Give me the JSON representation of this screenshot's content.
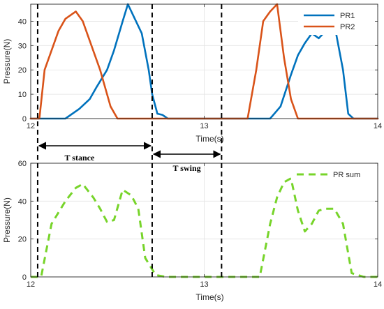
{
  "chart_data": [
    {
      "type": "line",
      "xlabel": "Time(s)",
      "ylabel": "Pressure(N)",
      "xlim": [
        12,
        14
      ],
      "ylim": [
        0,
        47
      ],
      "xticks": [
        "12",
        "13",
        "14"
      ],
      "yticks": [
        "0",
        "10",
        "20",
        "30",
        "40"
      ],
      "grid": true,
      "legend_position": "top-right",
      "series": [
        {
          "name": "PR1",
          "color": "#0072BD",
          "style": "solid",
          "x": [
            12.0,
            12.08,
            12.2,
            12.28,
            12.34,
            12.38,
            12.44,
            12.48,
            12.53,
            12.56,
            12.6,
            12.64,
            12.68,
            12.7,
            12.73,
            12.76,
            12.79,
            12.82,
            12.9,
            13.0,
            13.1,
            13.2,
            13.3,
            13.38,
            13.44,
            13.5,
            13.54,
            13.58,
            13.62,
            13.66,
            13.7,
            13.73,
            13.76,
            13.8,
            13.83,
            13.86,
            13.9,
            13.95,
            14.0
          ],
          "y": [
            0,
            0,
            0,
            4,
            8,
            13,
            20,
            28,
            40,
            47,
            41,
            35,
            20,
            10,
            2,
            1.5,
            0,
            0,
            0,
            0,
            0,
            0,
            0,
            0,
            5,
            18,
            26,
            31,
            35,
            33,
            36,
            37,
            35,
            20,
            2,
            0,
            0,
            0,
            0
          ]
        },
        {
          "name": "PR2",
          "color": "#D95319",
          "style": "solid",
          "x": [
            12.0,
            12.05,
            12.08,
            12.12,
            12.16,
            12.2,
            12.26,
            12.3,
            12.35,
            12.4,
            12.46,
            12.5,
            12.55,
            12.65,
            12.8,
            13.0,
            13.15,
            13.25,
            13.3,
            13.34,
            13.38,
            13.42,
            13.46,
            13.5,
            13.54,
            13.58,
            13.62,
            13.7,
            13.8,
            13.9,
            14.0
          ],
          "y": [
            0,
            0,
            20,
            28,
            36,
            41,
            44,
            40,
            30,
            20,
            5,
            0,
            0,
            0,
            0,
            0,
            0,
            0,
            20,
            40,
            44,
            47,
            25,
            8,
            0,
            0,
            0,
            0,
            0,
            0,
            0
          ]
        }
      ]
    },
    {
      "type": "line",
      "xlabel": "Time(s)",
      "ylabel": "Pressure(N)",
      "xlim": [
        12,
        14
      ],
      "ylim": [
        0,
        60
      ],
      "xticks": [
        "12",
        "13",
        "14"
      ],
      "yticks": [
        "0",
        "20",
        "40",
        "60"
      ],
      "grid": true,
      "legend_position": "top-right",
      "series": [
        {
          "name": "PR sum",
          "color": "#77D42A",
          "style": "dashed",
          "x": [
            12.0,
            12.06,
            12.12,
            12.2,
            12.26,
            12.3,
            12.36,
            12.4,
            12.44,
            12.48,
            12.53,
            12.58,
            12.62,
            12.66,
            12.72,
            12.78,
            12.84,
            12.92,
            13.0,
            13.1,
            13.2,
            13.28,
            13.32,
            13.38,
            13.42,
            13.46,
            13.5,
            13.54,
            13.58,
            13.62,
            13.66,
            13.7,
            13.75,
            13.8,
            13.85,
            13.92,
            14.0
          ],
          "y": [
            0,
            0,
            28,
            40,
            47,
            49,
            42,
            36,
            29,
            30,
            46,
            43,
            36,
            10,
            1,
            0,
            0,
            0,
            0,
            0,
            0,
            0,
            0,
            28,
            42,
            50,
            52,
            35,
            24,
            28,
            35,
            36,
            36,
            28,
            2,
            0,
            0
          ]
        }
      ]
    }
  ],
  "annotations": {
    "stance_label": "T stance",
    "swing_label": "T swing",
    "event_lines_x": [
      12.04,
      12.7,
      13.1
    ]
  }
}
